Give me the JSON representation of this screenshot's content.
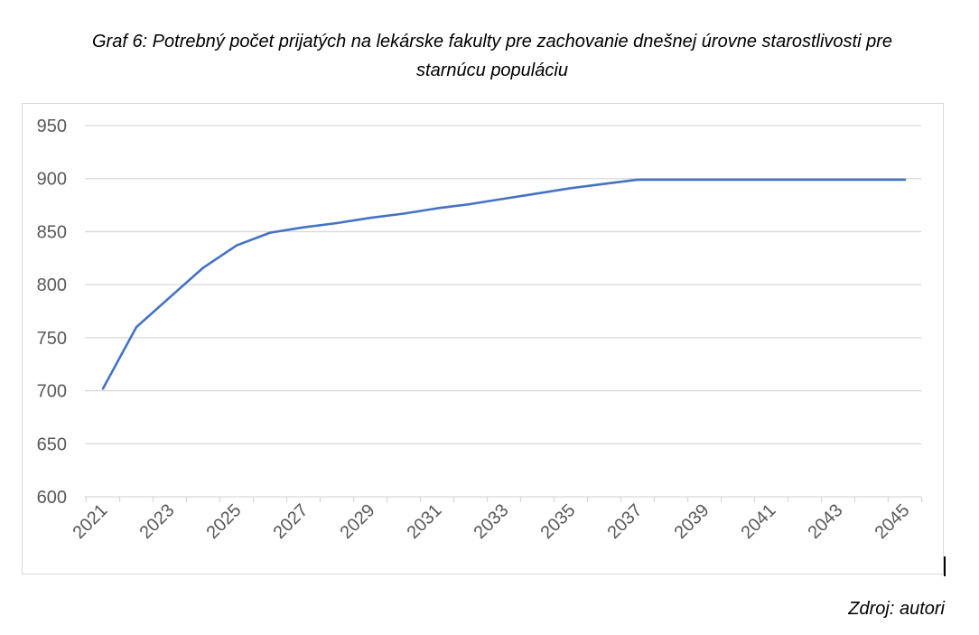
{
  "caption": {
    "line1": "Graf 6: Potrebný počet prijatých na lekárske fakulty pre zachovanie dnešnej úrovne starostlivosti pre",
    "line2": "starnúcu populáciu"
  },
  "source": "Zdroj: autori",
  "colors": {
    "line": "#4472c4",
    "grid": "#d9d9d9",
    "axis_text": "#595959"
  },
  "chart_data": {
    "type": "line",
    "title": "Graf 6: Potrebný počet prijatých na lekárske fakulty pre zachovanie dnešnej úrovne starostlivosti pre starnúcu populáciu",
    "xlabel": "",
    "ylabel": "",
    "x": [
      2021,
      2022,
      2023,
      2024,
      2025,
      2026,
      2027,
      2028,
      2029,
      2030,
      2031,
      2032,
      2033,
      2034,
      2035,
      2036,
      2037,
      2038,
      2039,
      2040,
      2041,
      2042,
      2043,
      2044,
      2045
    ],
    "x_tick_labels": [
      "2021",
      "2023",
      "2025",
      "2027",
      "2029",
      "2031",
      "2033",
      "2035",
      "2037",
      "2039",
      "2041",
      "2043",
      "2045"
    ],
    "series": [
      {
        "values": [
          702,
          760,
          788,
          816,
          837,
          849,
          854,
          858,
          863,
          867,
          872,
          876,
          881,
          886,
          891,
          895,
          899,
          899,
          899,
          899,
          899,
          899,
          899,
          899,
          899
        ]
      }
    ],
    "ylim": [
      600,
      950
    ],
    "y_ticks": [
      600,
      650,
      700,
      750,
      800,
      850,
      900,
      950
    ],
    "grid": true,
    "legend": "none"
  }
}
